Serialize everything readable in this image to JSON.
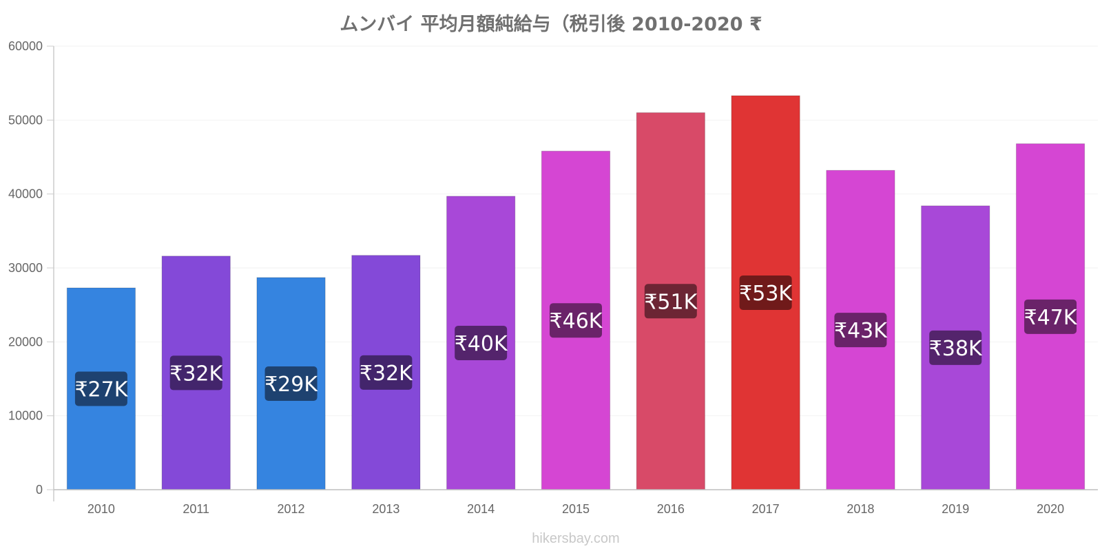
{
  "chart_data": {
    "type": "bar",
    "title": "ムンバイ 平均月額純給与（税引後 2010-2020 ₹",
    "categories": [
      "2010",
      "2011",
      "2012",
      "2013",
      "2014",
      "2015",
      "2016",
      "2017",
      "2018",
      "2019",
      "2020"
    ],
    "values": [
      27300,
      31600,
      28700,
      31700,
      39700,
      45800,
      51000,
      53300,
      43200,
      38400,
      46800
    ],
    "data_labels": [
      "₹27K",
      "₹32K",
      "₹29K",
      "₹32K",
      "₹40K",
      "₹46K",
      "₹51K",
      "₹53K",
      "₹43K",
      "₹38K",
      "₹47K"
    ],
    "bar_colors": [
      "#3584e0",
      "#8449d8",
      "#3584e0",
      "#8449d8",
      "#a848d8",
      "#d546d3",
      "#d84a68",
      "#e03434",
      "#d546d3",
      "#a848d8",
      "#d546d3"
    ],
    "label_bg_colors": [
      "#1e4270",
      "#43256c",
      "#1e4270",
      "#43256c",
      "#54246c",
      "#6a2369",
      "#6c2534",
      "#701a1a",
      "#6a2369",
      "#54246c",
      "#6a2369"
    ],
    "ylim": [
      0,
      60000
    ],
    "yticks": [
      0,
      10000,
      20000,
      30000,
      40000,
      50000,
      60000
    ],
    "xlabel": "",
    "ylabel": "",
    "grid": true,
    "legend": "none"
  },
  "watermark": "hikersbay.com"
}
